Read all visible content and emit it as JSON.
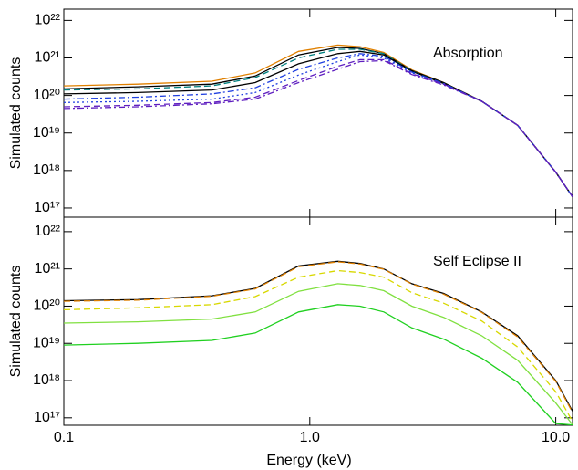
{
  "chart_data": [
    {
      "type": "line",
      "annotation": "Absorption",
      "ylabel": "Simulated counts",
      "log_x": true,
      "log_y": true,
      "x": [
        0.1,
        0.2,
        0.4,
        0.6,
        0.9,
        1.3,
        1.6,
        2.0,
        2.6,
        3.5,
        5,
        7,
        10,
        11.7
      ],
      "xlim": [
        0.1,
        11.7
      ],
      "ylim": [
        5.7e+16,
        2e+22
      ],
      "yticks": [
        {
          "value": 1e+17,
          "label": "10¹⁷"
        },
        {
          "value": 1e+18,
          "label": "10¹⁸"
        },
        {
          "value": 1e+19,
          "label": "10¹⁹"
        },
        {
          "value": 1e+20,
          "label": "10²⁰"
        },
        {
          "value": 1e+21,
          "label": "10²¹"
        },
        {
          "value": 1e+22,
          "label": "10²²"
        }
      ],
      "series": [
        {
          "color": "#e08000",
          "linestyle": "solid",
          "values": [
            1.8e+20,
            2e+20,
            2.4e+20,
            4e+20,
            1.5e+21,
            2.2e+21,
            2e+21,
            1.4e+21,
            4.8e+20,
            2.2e+20,
            7e+19,
            1.6e+19,
            9e+17,
            2e+17
          ]
        },
        {
          "color": "#000000",
          "linestyle": "solid",
          "values": [
            1.5e+20,
            1.7e+20,
            2e+20,
            3.3e+20,
            1.2e+21,
            1.9e+21,
            1.8e+21,
            1.3e+21,
            4.6e+20,
            2.2e+20,
            7e+19,
            1.6e+19,
            9e+17,
            2e+17
          ]
        },
        {
          "color": "#008080",
          "linestyle": "dashed",
          "values": [
            1.4e+20,
            1.5e+20,
            1.8e+20,
            3e+20,
            1e+21,
            1.7e+21,
            1.7e+21,
            1.3e+21,
            4.5e+20,
            2.1e+20,
            7e+19,
            1.6e+19,
            9e+17,
            2e+17
          ]
        },
        {
          "color": "#000000",
          "linestyle": "solid",
          "values": [
            1.1e+20,
            1.2e+20,
            1.4e+20,
            2.2e+20,
            7e+20,
            1.3e+21,
            1.5e+21,
            1.2e+21,
            4.4e+20,
            2.1e+20,
            7e+19,
            1.6e+19,
            9e+17,
            2e+17
          ]
        },
        {
          "color": "#2040e0",
          "linestyle": "dashdot",
          "values": [
            8e+19,
            9e+19,
            1.1e+20,
            1.6e+20,
            5e+20,
            1e+21,
            1.3e+21,
            1.1e+21,
            4.2e+20,
            2.1e+20,
            7e+19,
            1.6e+19,
            9e+17,
            2e+17
          ]
        },
        {
          "color": "#2040e0",
          "linestyle": "dotted",
          "values": [
            6.5e+19,
            7e+19,
            8e+19,
            1.2e+20,
            3.5e+20,
            8e+20,
            1.2e+21,
            1e+21,
            4e+20,
            2e+20,
            7e+19,
            1.6e+19,
            9e+17,
            2e+17
          ]
        },
        {
          "color": "#6020c0",
          "linestyle": "dashed",
          "values": [
            5e+19,
            5.5e+19,
            6.5e+19,
            9e+19,
            2.5e+20,
            6e+20,
            9e+20,
            9e+20,
            3.8e+20,
            2e+20,
            7e+19,
            1.6e+19,
            9e+17,
            2e+17
          ]
        },
        {
          "color": "#6020c0",
          "linestyle": "dashdot",
          "values": [
            4.5e+19,
            5e+19,
            6e+19,
            8e+19,
            2.2e+20,
            5e+20,
            8e+20,
            8.5e+20,
            3.6e+20,
            1.9e+20,
            7e+19,
            1.6e+19,
            9e+17,
            2e+17
          ]
        }
      ]
    },
    {
      "type": "line",
      "annotation": "Self Eclipse II",
      "ylabel": "Simulated counts",
      "xlabel": "Energy (keV)",
      "log_x": true,
      "log_y": true,
      "x": [
        0.1,
        0.2,
        0.4,
        0.6,
        0.9,
        1.3,
        1.6,
        2.0,
        2.6,
        3.5,
        5,
        7,
        10,
        11.7
      ],
      "xlim": [
        0.1,
        11.7
      ],
      "ylim": [
        6.3e+16,
        2.45e+22
      ],
      "xticks": [
        0.1,
        {
          "value": 1,
          "label": "1.0"
        },
        {
          "value": 10,
          "label": "10.0"
        }
      ],
      "yticks": [
        {
          "value": 1e+17,
          "label": "10¹⁷"
        },
        {
          "value": 1e+18,
          "label": "10¹⁸"
        },
        {
          "value": 1e+19,
          "label": "10¹⁹"
        },
        {
          "value": 1e+20,
          "label": "10²⁰"
        },
        {
          "value": 1e+21,
          "label": "10²¹"
        },
        {
          "value": 1e+22,
          "label": "10²²"
        }
      ],
      "series": [
        {
          "color": "#000000",
          "linestyle": "solid",
          "values": [
            1.4e+20,
            1.5e+20,
            1.9e+20,
            3e+20,
            1.2e+21,
            1.6e+21,
            1.4e+21,
            1e+21,
            4e+20,
            2.2e+20,
            7e+19,
            1.6e+19,
            1e+18,
            1.5e+17
          ]
        },
        {
          "color": "#e08000",
          "linestyle": "dashed",
          "values": [
            1.35e+20,
            1.45e+20,
            1.85e+20,
            2.9e+20,
            1.15e+21,
            1.55e+21,
            1.35e+21,
            9.8e+20,
            3.9e+20,
            2.1e+20,
            6.8e+19,
            1.5e+19,
            9.5e+17,
            1.4e+17
          ]
        },
        {
          "color": "#d8d800",
          "linestyle": "dashed",
          "values": [
            8e+19,
            9e+19,
            1.1e+20,
            1.8e+20,
            6e+20,
            9e+20,
            8e+20,
            6e+20,
            2.3e+20,
            1.2e+20,
            4e+19,
            8e+18,
            5e+17,
            8e+16
          ]
        },
        {
          "color": "#80e040",
          "linestyle": "solid",
          "values": [
            3.5e+19,
            3.8e+19,
            4.5e+19,
            7e+19,
            2.5e+20,
            4e+20,
            3.6e+20,
            2.6e+20,
            1e+20,
            5e+19,
            1.6e+19,
            3.5e+18,
            2.5e+17,
            6.5e+16
          ]
        },
        {
          "color": "#20d020",
          "linestyle": "solid",
          "values": [
            9e+18,
            1e+19,
            1.2e+19,
            1.9e+19,
            7e+19,
            1.1e+20,
            1e+20,
            7e+19,
            2.6e+19,
            1.3e+19,
            4e+18,
            9e+17,
            7e+16,
            6.4e+16
          ]
        }
      ]
    }
  ]
}
